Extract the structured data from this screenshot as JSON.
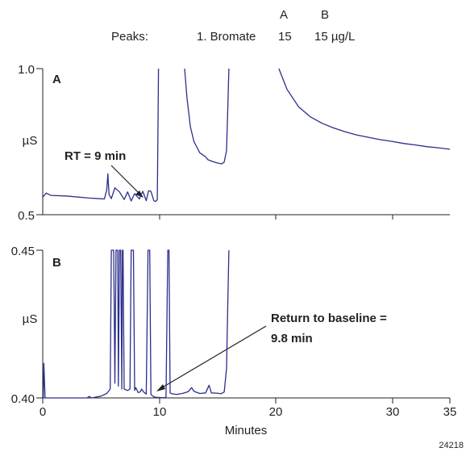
{
  "header": {
    "peaks_label": "Peaks:",
    "col_a": "A",
    "col_b": "B",
    "peak_1": "1. Bromate",
    "value_a": "15",
    "value_b": "15 µg/L"
  },
  "chart_data": [
    {
      "type": "line",
      "panel_label": "A",
      "ylabel": "µS",
      "ylim": [
        0.5,
        1.0
      ],
      "yticks": [
        "1.0",
        "0.5"
      ],
      "xlim": [
        0,
        35
      ],
      "annotation": "RT = 9 min",
      "series": [
        {
          "x": [
            0,
            0.3,
            0.7,
            2,
            4,
            5.3,
            5.5,
            5.6,
            5.7,
            5.9,
            6.2,
            6.6,
            7.0,
            7.3,
            7.6,
            7.9,
            8.3,
            8.6,
            8.9,
            9.1,
            9.3,
            9.55,
            9.7,
            9.85,
            9.9,
            9.95
          ],
          "y": [
            0.56,
            0.574,
            0.566,
            0.564,
            0.557,
            0.554,
            0.585,
            0.64,
            0.57,
            0.555,
            0.592,
            0.578,
            0.552,
            0.578,
            0.547,
            0.572,
            0.554,
            0.58,
            0.548,
            0.582,
            0.58,
            0.548,
            0.545,
            0.552,
            0.75,
            1.0
          ]
        },
        {
          "x": [
            12.2,
            12.4,
            12.7,
            13.0,
            13.5,
            14.0,
            14.2,
            14.6,
            15.0,
            15.4,
            15.6,
            15.8,
            15.9,
            16.0
          ],
          "y": [
            1.0,
            0.9,
            0.8,
            0.75,
            0.712,
            0.698,
            0.688,
            0.682,
            0.677,
            0.674,
            0.68,
            0.72,
            0.85,
            1.0
          ]
        },
        {
          "x": [
            20.3,
            21,
            22,
            23,
            24,
            25,
            26,
            27,
            28,
            29,
            30,
            31,
            32,
            33,
            34,
            35
          ],
          "y": [
            1.0,
            0.929,
            0.869,
            0.835,
            0.813,
            0.797,
            0.784,
            0.773,
            0.765,
            0.757,
            0.751,
            0.744,
            0.739,
            0.733,
            0.729,
            0.724
          ]
        }
      ]
    },
    {
      "type": "line",
      "panel_label": "B",
      "ylabel": "µS",
      "ylim": [
        0.4,
        0.45
      ],
      "yticks": [
        "0.45",
        "0.40"
      ],
      "xlim": [
        0,
        35
      ],
      "xticks": [
        0,
        10,
        20,
        30,
        35
      ],
      "xlabel": "Minutes",
      "annotation": "Return to baseline =\n9.8 min",
      "series": [
        {
          "x": [
            0,
            0.05,
            0.1,
            0.15,
            0.2,
            0.3,
            0.5,
            1,
            2,
            3,
            3.8,
            4.0,
            4.2,
            5.0,
            5.5,
            5.8,
            5.9,
            6.0,
            6.05,
            6.1,
            6.2,
            6.3,
            6.4,
            6.45,
            6.5,
            6.6,
            6.65,
            6.7,
            6.8,
            6.85,
            6.9,
            7.0,
            7.3,
            7.5,
            7.6,
            7.7,
            7.8,
            7.9,
            8.0,
            8.2,
            8.4,
            8.5,
            8.7,
            8.9,
            9.05,
            9.1,
            9.2,
            9.3,
            9.4,
            9.6,
            9.8,
            10.2,
            10.6,
            10.75,
            10.8,
            10.85,
            10.95,
            11.1,
            11.5,
            12,
            12.5,
            12.8,
            13,
            13.5,
            14,
            14.3,
            14.5,
            15.0,
            15.3,
            15.6,
            15.8,
            15.9,
            16.0
          ],
          "y": [
            0.4,
            0.4,
            0.4117,
            0.4055,
            0.4,
            0.4,
            0.4,
            0.4,
            0.4,
            0.4,
            0.4,
            0.4005,
            0.4,
            0.4006,
            0.4015,
            0.403,
            0.45,
            0.45,
            0.45,
            0.45,
            0.405,
            0.45,
            0.45,
            0.45,
            0.404,
            0.45,
            0.45,
            0.45,
            0.403,
            0.45,
            0.45,
            0.403,
            0.4025,
            0.403,
            0.45,
            0.45,
            0.45,
            0.4025,
            0.4035,
            0.4018,
            0.4021,
            0.403,
            0.4019,
            0.4013,
            0.45,
            0.45,
            0.45,
            0.4012,
            0.4008,
            0.4003,
            0.4002,
            0.4001,
            0.4001,
            0.45,
            0.45,
            0.45,
            0.4017,
            0.4014,
            0.4012,
            0.4015,
            0.4021,
            0.4035,
            0.4022,
            0.4015,
            0.4017,
            0.4043,
            0.4017,
            0.4016,
            0.4014,
            0.402,
            0.41,
            0.43,
            0.45
          ]
        }
      ]
    }
  ],
  "figure_id": "24218"
}
